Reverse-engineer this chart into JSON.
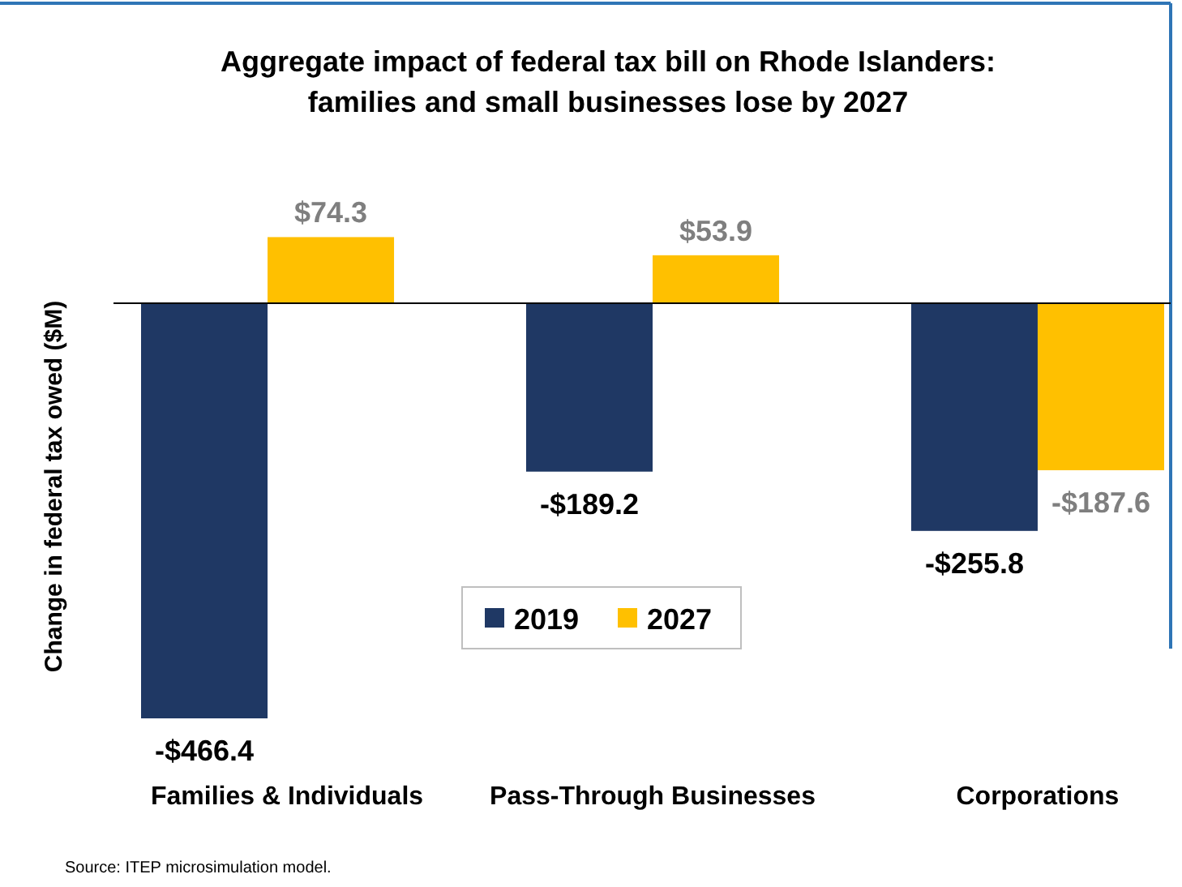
{
  "chart_data": {
    "type": "bar",
    "title": "Aggregate impact of federal tax bill on Rhode Islanders:\nfamilies and small businesses lose by 2027",
    "ylabel": "Change in federal tax owed ($M)",
    "categories": [
      "Families & Individuals",
      "Pass-Through Businesses",
      "Corporations"
    ],
    "series": [
      {
        "name": "2019",
        "color": "#1f3864",
        "values": [
          -466.4,
          -189.2,
          -255.8
        ],
        "value_labels": [
          "-$466.4",
          "-$189.2",
          "-$255.8"
        ]
      },
      {
        "name": "2027",
        "color": "#ffc000",
        "values": [
          74.3,
          53.9,
          -187.6
        ],
        "value_labels": [
          "$74.3",
          "$53.9",
          "-$187.6"
        ]
      }
    ],
    "legend": "center",
    "annotations": [
      "Source: ITEP microsimulation model."
    ]
  }
}
